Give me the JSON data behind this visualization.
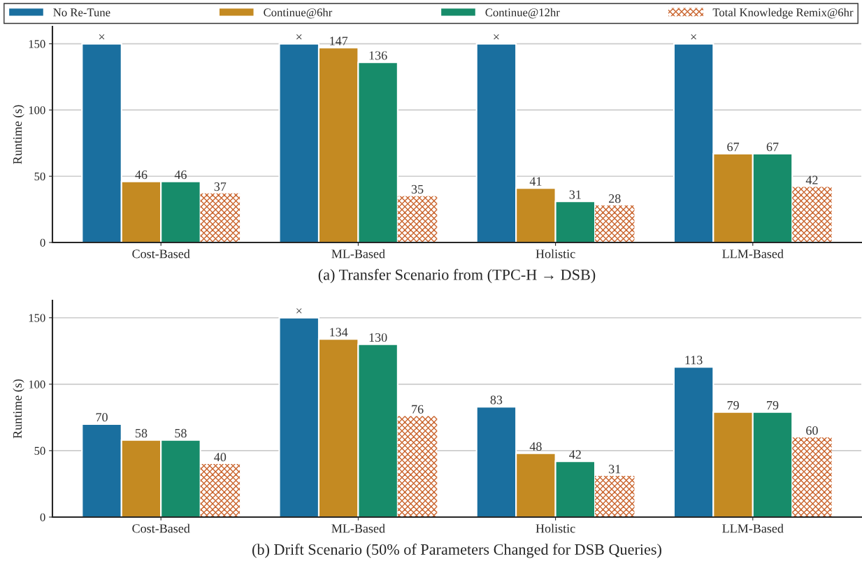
{
  "chart_data": [
    {
      "type": "bar",
      "title": "(a) Transfer Scenario from (TPC-H → DSB)",
      "ylabel": "Runtime (s)",
      "categories": [
        "Cost-Based",
        "ML-Based",
        "Holistic",
        "LLM-Based"
      ],
      "ylim": [
        0,
        163
      ],
      "yticks": [
        0,
        50,
        100,
        150
      ],
      "grid": "y",
      "legend": "top",
      "series": [
        {
          "name": "No Re-Tune",
          "color": "#1a6f9f",
          "values": [
            150,
            150,
            150,
            150
          ],
          "value_labels": [
            "×",
            "×",
            "×",
            "×"
          ]
        },
        {
          "name": "Continue@6hr",
          "color": "#c48a22",
          "values": [
            46,
            147,
            41,
            67
          ],
          "value_labels": [
            "46",
            "147",
            "41",
            "67"
          ]
        },
        {
          "name": "Continue@12hr",
          "color": "#178c6a",
          "values": [
            46,
            136,
            31,
            67
          ],
          "value_labels": [
            "46",
            "136",
            "31",
            "67"
          ]
        },
        {
          "name": "Total Knowledge Remix@6hr",
          "color": "#c9622a",
          "values": [
            37,
            35,
            28,
            42
          ],
          "value_labels": [
            "37",
            "35",
            "28",
            "42"
          ]
        }
      ]
    },
    {
      "type": "bar",
      "title": "(b) Drift Scenario (50% of Parameters Changed for DSB Queries)",
      "ylabel": "Runtime (s)",
      "categories": [
        "Cost-Based",
        "ML-Based",
        "Holistic",
        "LLM-Based"
      ],
      "ylim": [
        0,
        163
      ],
      "yticks": [
        0,
        50,
        100,
        150
      ],
      "grid": "y",
      "series": [
        {
          "color": "#1a6f9f",
          "values": [
            70,
            150,
            83,
            113
          ],
          "value_labels": [
            "70",
            "×",
            "83",
            "113"
          ]
        },
        {
          "color": "#c48a22",
          "values": [
            58,
            134,
            48,
            79
          ],
          "value_labels": [
            "58",
            "134",
            "48",
            "79"
          ]
        },
        {
          "color": "#178c6a",
          "values": [
            58,
            130,
            42,
            79
          ],
          "value_labels": [
            "58",
            "130",
            "42",
            "79"
          ]
        },
        {
          "color": "#c9622a",
          "values": [
            40,
            76,
            31,
            60
          ],
          "value_labels": [
            "40",
            "76",
            "31",
            "60"
          ]
        }
      ]
    }
  ]
}
